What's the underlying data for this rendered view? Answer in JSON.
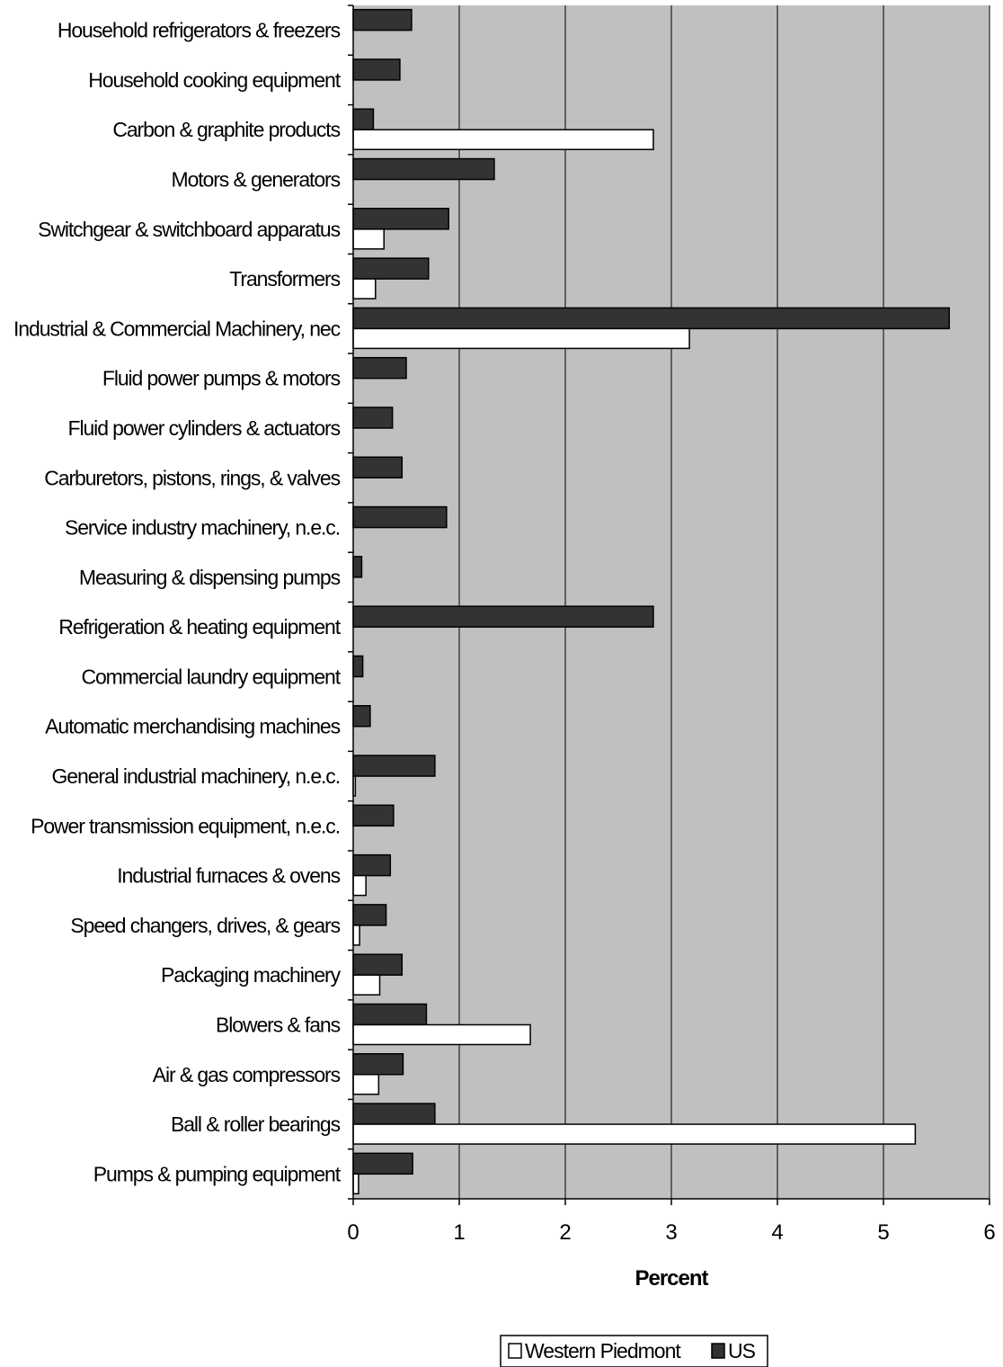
{
  "chart_data": {
    "type": "bar",
    "orientation": "horizontal",
    "categories": [
      "Household refrigerators & freezers",
      "Household cooking equipment",
      "Carbon & graphite products",
      "Motors & generators",
      "Switchgear & switchboard apparatus",
      "Transformers",
      "Industrial & Commercial Machinery, nec",
      "Fluid power pumps & motors",
      "Fluid power cylinders & actuators",
      "Carburetors, pistons, rings, & valves",
      "Service industry machinery, n.e.c.",
      "Measuring & dispensing pumps",
      "Refrigeration & heating equipment",
      "Commercial laundry equipment",
      "Automatic merchandising machines",
      "General industrial machinery, n.e.c.",
      "Power transmission equipment, n.e.c.",
      "Industrial furnaces & ovens",
      "Speed changers, drives, & gears",
      "Packaging machinery",
      "Blowers & fans",
      "Air & gas compressors",
      "Ball & roller bearings",
      "Pumps & pumping equipment"
    ],
    "series": [
      {
        "name": "Western Piedmont",
        "color": "#ffffff",
        "values": [
          0,
          0,
          2.83,
          0,
          0.29,
          0.21,
          3.17,
          0,
          0,
          0,
          0,
          0,
          0,
          0,
          0,
          0.02,
          0,
          0.12,
          0.06,
          0.25,
          1.67,
          0.24,
          5.3,
          0.05
        ]
      },
      {
        "name": "US",
        "color": "#333333",
        "values": [
          0.55,
          0.44,
          0.19,
          1.33,
          0.9,
          0.71,
          5.62,
          0.5,
          0.37,
          0.46,
          0.88,
          0.08,
          2.83,
          0.09,
          0.16,
          0.77,
          0.38,
          0.35,
          0.31,
          0.46,
          0.69,
          0.47,
          0.77,
          0.56
        ]
      }
    ],
    "xlabel": "Percent",
    "xlim": [
      0,
      6
    ],
    "xticks": [
      "0",
      "1",
      "2",
      "3",
      "4",
      "5",
      "6"
    ],
    "grid": true,
    "plot_background": "#c0c0c0",
    "legend_position": "bottom"
  }
}
